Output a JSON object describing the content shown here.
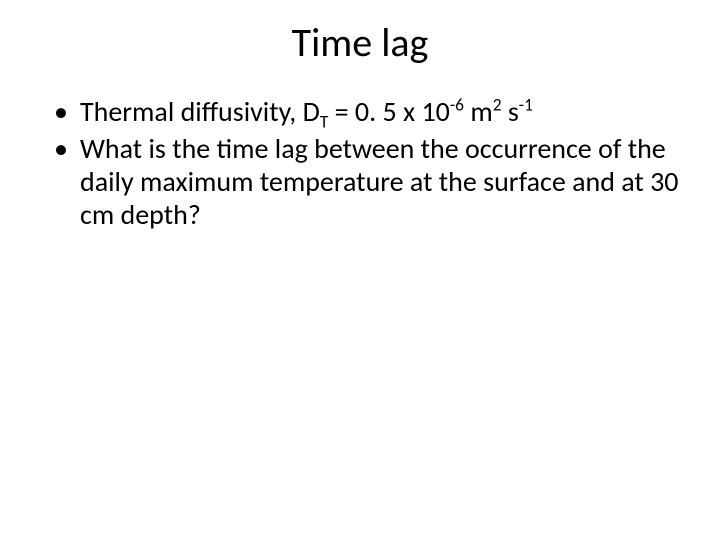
{
  "slide": {
    "title": "Time lag",
    "background_color": "#ffffff",
    "text_color": "#000000",
    "title_fontsize": 40,
    "body_fontsize": 28,
    "bullets": [
      {
        "pre": "Thermal diffusivity, D",
        "sub1": "T",
        "mid1": " = 0. 5 x 10",
        "sup1": "-6",
        "mid2": " m",
        "sup2": "2",
        "mid3": " s",
        "sup3": "-1",
        "post": ""
      },
      {
        "pre": "What is the time lag between the occurrence of the daily maximum temperature at the surface and at 30 cm depth?",
        "sub1": "",
        "mid1": "",
        "sup1": "",
        "mid2": "",
        "sup2": "",
        "mid3": "",
        "sup3": "",
        "post": ""
      }
    ]
  }
}
